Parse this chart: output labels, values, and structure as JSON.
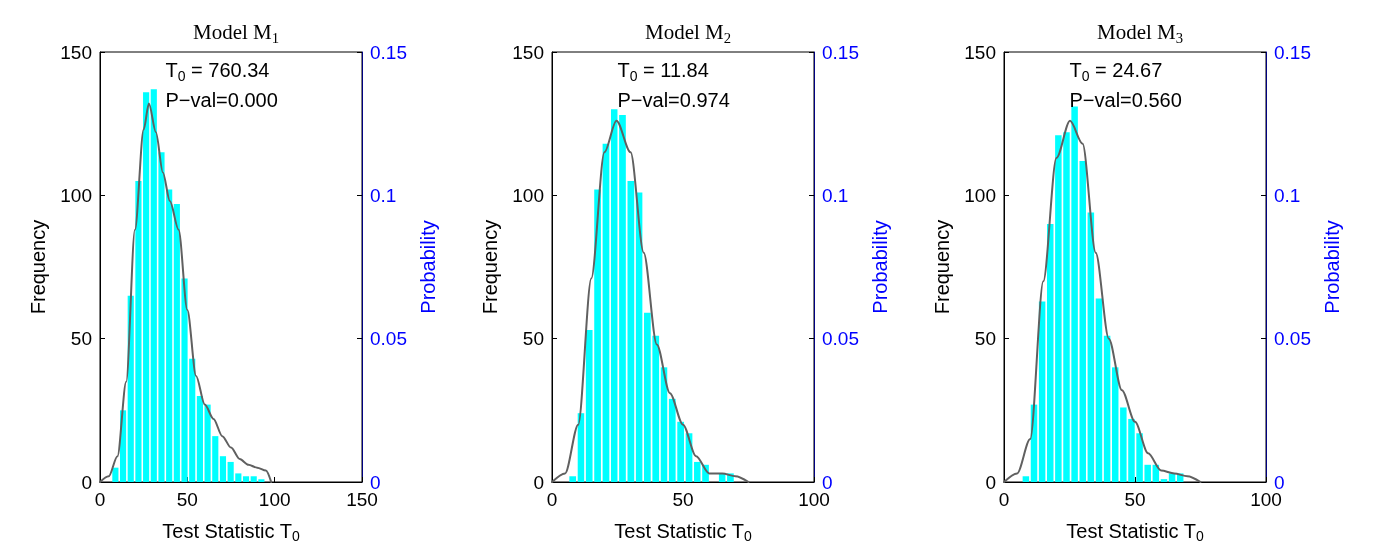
{
  "chart_data": [
    {
      "type": "histogram",
      "title": "Model M$_{1}$",
      "xlabel": "Test Statistic T$_{0}$",
      "ylabel": "Frequency",
      "y2label": "Probability",
      "annotations": [
        "T$_{0}$ = 760.34",
        "P−val=0.000"
      ],
      "xlim": [
        0,
        150
      ],
      "xticks": [
        0,
        50,
        100,
        150
      ],
      "ylim": [
        0,
        150
      ],
      "yticks": [
        0,
        50,
        100,
        150
      ],
      "y2lim": [
        0,
        0.15
      ],
      "y2ticks": [
        0,
        0.05,
        0.1,
        0.15
      ],
      "grid": false,
      "series": [
        {
          "type": "histogram",
          "color": "#00ffff",
          "bins": [
            6.6,
            11,
            15.4,
            19.8,
            24.2,
            28.6,
            33,
            37.4,
            41.8,
            46.2,
            50.6,
            55,
            59.4,
            63.8,
            68.2,
            72.6,
            77,
            81.4,
            85.8,
            90.2,
            94.6
          ],
          "values": [
            5,
            25,
            65,
            105,
            136,
            137,
            115,
            102,
            97,
            71,
            43,
            30,
            27,
            16,
            9,
            7,
            3,
            2,
            2,
            1
          ]
        },
        {
          "type": "line",
          "axis": "y2",
          "color": "#606060",
          "x": [
            0,
            5,
            10,
            15,
            20,
            25,
            28,
            32,
            36,
            40,
            45,
            50,
            55,
            60,
            65,
            70,
            75,
            80,
            85,
            90,
            95,
            98
          ],
          "values": [
            0,
            0.002,
            0.009,
            0.035,
            0.088,
            0.123,
            0.132,
            0.122,
            0.108,
            0.098,
            0.088,
            0.06,
            0.037,
            0.027,
            0.022,
            0.016,
            0.012,
            0.008,
            0.006,
            0.005,
            0.004,
            0
          ]
        }
      ]
    },
    {
      "type": "histogram",
      "title": "Model M$_{2}$",
      "xlabel": "Test Statistic T$_{0}$",
      "ylabel": "Frequency",
      "y2label": "Probability",
      "annotations": [
        "T$_{0}$ = 11.84",
        "P−val=0.974"
      ],
      "xlim": [
        0,
        100
      ],
      "xticks": [
        0,
        50,
        100
      ],
      "ylim": [
        0,
        150
      ],
      "yticks": [
        0,
        50,
        100,
        150
      ],
      "y2lim": [
        0,
        0.15
      ],
      "y2ticks": [
        0,
        0.05,
        0.1,
        0.15
      ],
      "grid": false,
      "series": [
        {
          "type": "histogram",
          "color": "#00ffff",
          "bins": [
            6.3,
            9.5,
            12.6,
            15.8,
            19,
            22.2,
            25.3,
            28.5,
            31.7,
            34.8,
            38,
            41.2,
            44.3,
            47.5,
            50.7,
            53.9,
            57,
            60.2,
            63.4,
            66.5,
            69.7
          ],
          "values": [
            2,
            24,
            53,
            102,
            118,
            130,
            128,
            105,
            101,
            59,
            51,
            40,
            29,
            21,
            17,
            7,
            6,
            0,
            3,
            3
          ]
        },
        {
          "type": "line",
          "axis": "y2",
          "color": "#606060",
          "x": [
            0,
            5,
            10,
            15,
            20,
            24.6,
            30,
            35,
            40,
            45,
            50,
            55,
            60,
            65,
            70,
            75
          ],
          "values": [
            0,
            0.003,
            0.02,
            0.071,
            0.115,
            0.126,
            0.115,
            0.08,
            0.048,
            0.031,
            0.02,
            0.009,
            0.003,
            0.003,
            0.002,
            0
          ]
        }
      ]
    },
    {
      "type": "histogram",
      "title": "Model M$_{3}$",
      "xlabel": "Test Statistic T$_{0}$",
      "ylabel": "Frequency",
      "y2label": "Probability",
      "annotations": [
        "T$_{0}$ = 24.67",
        "P−val=0.560"
      ],
      "xlim": [
        0,
        100
      ],
      "xticks": [
        0,
        50,
        100
      ],
      "ylim": [
        0,
        150
      ],
      "yticks": [
        0,
        50,
        100,
        150
      ],
      "y2lim": [
        0,
        0.15
      ],
      "y2ticks": [
        0,
        0.05,
        0.1,
        0.15
      ],
      "grid": false,
      "series": [
        {
          "type": "histogram",
          "color": "#00ffff",
          "bins": [
            6.8,
            9.9,
            13,
            16.1,
            19.2,
            22.3,
            25.4,
            28.5,
            31.6,
            34.7,
            37.8,
            40.9,
            44,
            47.1,
            50.2,
            53.3,
            56.4,
            59.5,
            62.6,
            65.7,
            68.8
          ],
          "values": [
            2,
            27,
            63,
            90,
            121,
            122,
            131,
            112,
            94,
            64,
            51,
            40,
            26,
            22,
            17,
            6,
            6,
            1,
            3,
            3
          ]
        },
        {
          "type": "line",
          "axis": "y2",
          "color": "#606060",
          "x": [
            0,
            5,
            10,
            15,
            20,
            25.2,
            30,
            35,
            40,
            45,
            50,
            55,
            60,
            65,
            70,
            75
          ],
          "values": [
            0,
            0.003,
            0.015,
            0.07,
            0.113,
            0.126,
            0.118,
            0.08,
            0.05,
            0.032,
            0.021,
            0.01,
            0.004,
            0.003,
            0.002,
            0
          ]
        }
      ]
    }
  ]
}
